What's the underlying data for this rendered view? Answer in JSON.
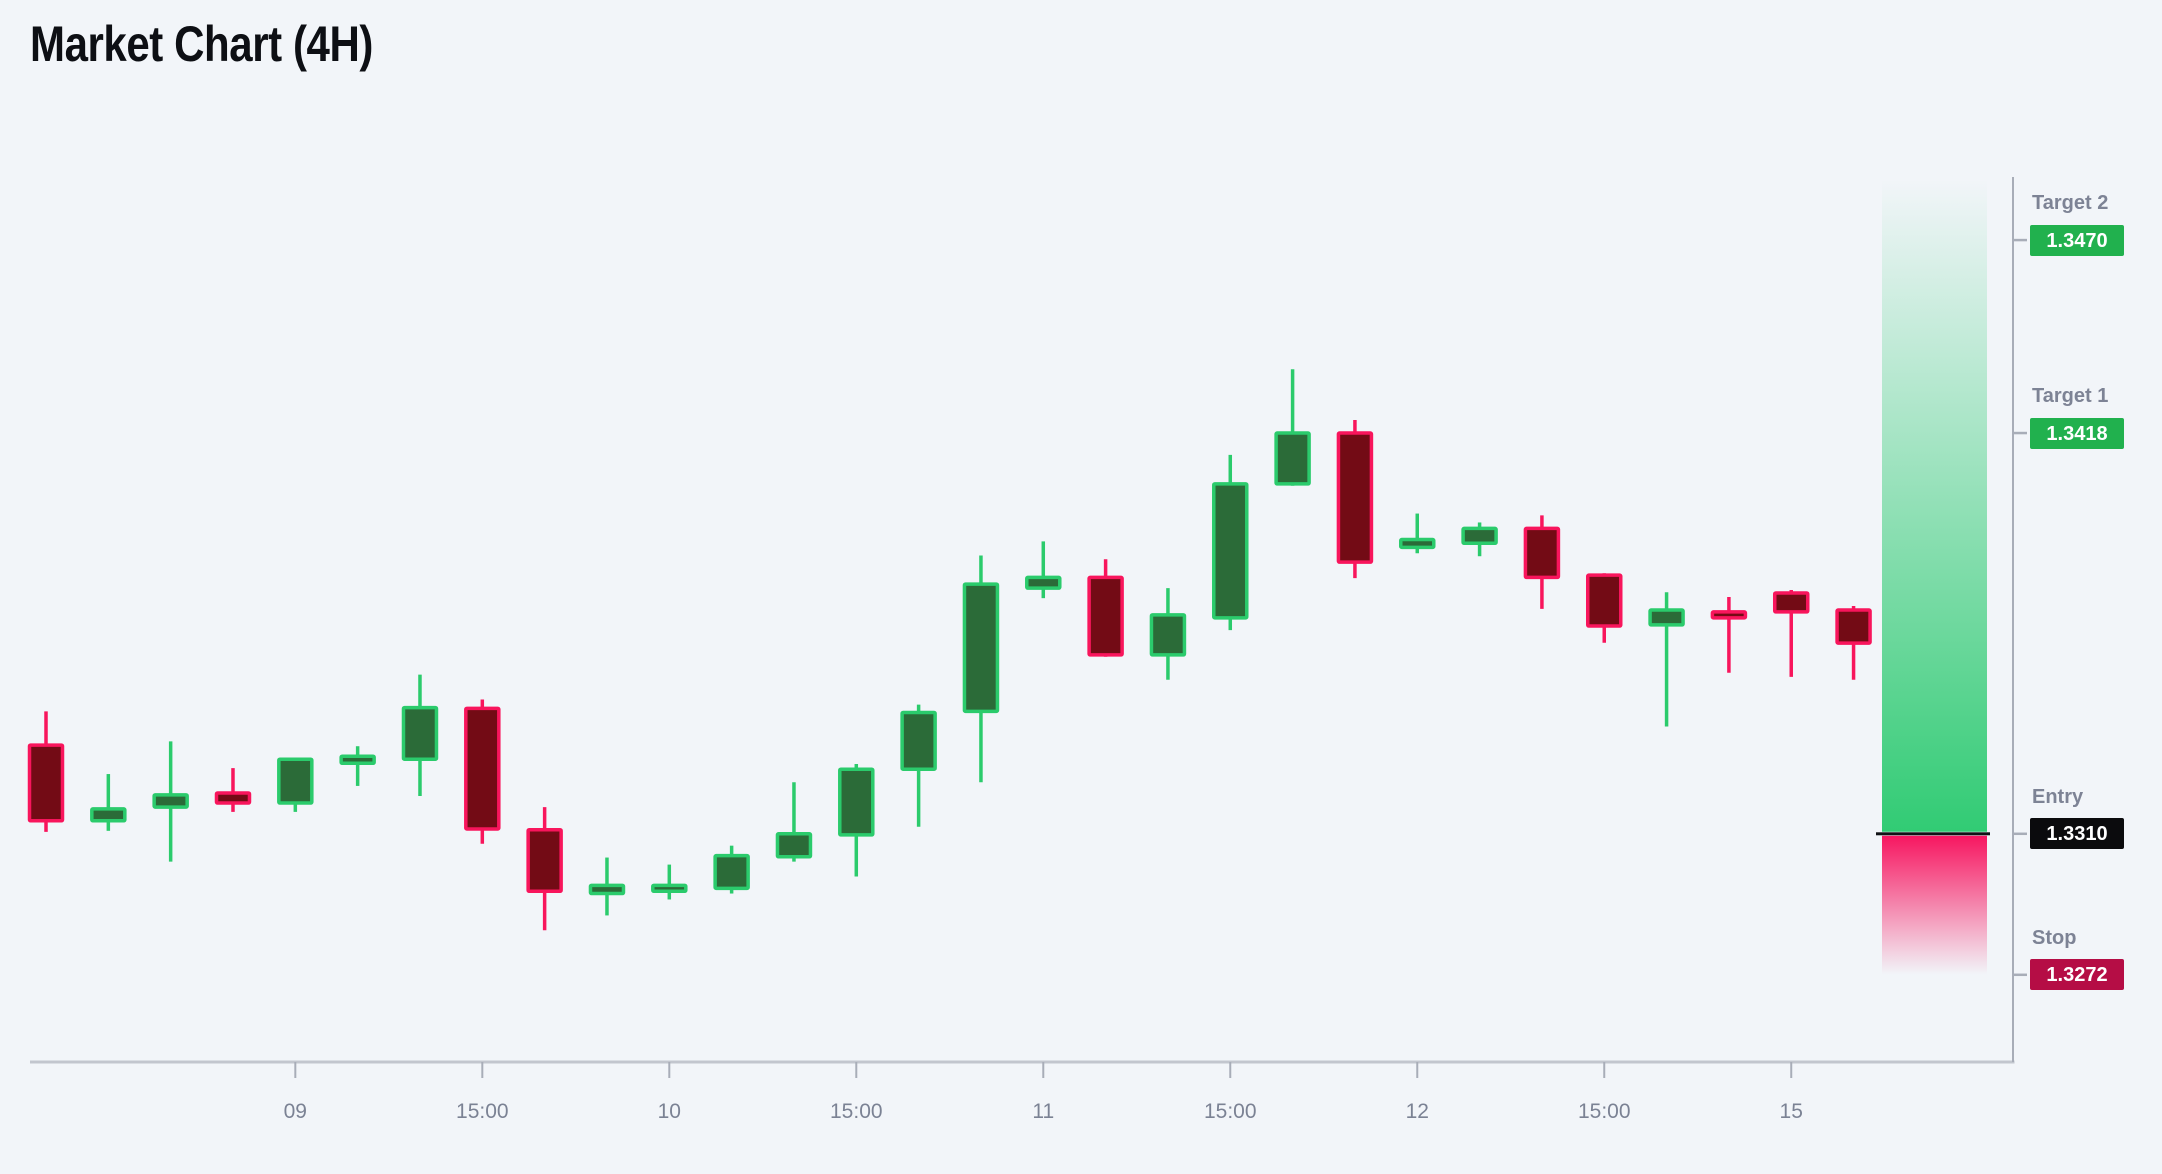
{
  "page": {
    "title": "Market Chart (4H)"
  },
  "colors": {
    "background": "#f2f5f9",
    "title": "#0d0f14",
    "axis_line_bottom": "#c2c6ce",
    "axis_line_right": "#a8adb8",
    "tick_label": "#7b8294",
    "level_label": "#7d8395",
    "candle_up_fill": "#2b6b38",
    "candle_up_stroke": "#2bcb6c",
    "candle_down_fill": "#730b15",
    "candle_down_stroke": "#f8155c",
    "zone_profit": "#27c96d",
    "zone_loss": "#f7105c",
    "entry_line": "#101216",
    "badge_target_bg": "#21b14e",
    "badge_entry_bg": "#0b0b0d",
    "badge_stop_bg": "#b50d45",
    "badge_text": "#ffffff"
  },
  "chart_data": {
    "type": "candlestick",
    "title": "Market Chart (4H)",
    "timeframe": "4H",
    "grid": false,
    "legend_position": "none",
    "ylim": [
      1.32485,
      1.3487
    ],
    "x_tick_labels": [
      "09",
      "15:00",
      "10",
      "15:00",
      "11",
      "15:00",
      "12",
      "15:00",
      "15"
    ],
    "x_tick_candle_indices": [
      4,
      7,
      10,
      13,
      16,
      19,
      22,
      25,
      28
    ],
    "candles": [
      {
        "o": 1.33339,
        "h": 1.3343,
        "l": 1.33105,
        "c": 1.33135
      },
      {
        "o": 1.33135,
        "h": 1.33261,
        "l": 1.33108,
        "c": 1.33167
      },
      {
        "o": 1.33172,
        "h": 1.33349,
        "l": 1.33025,
        "c": 1.33205
      },
      {
        "o": 1.3321,
        "h": 1.33277,
        "l": 1.33159,
        "c": 1.33183
      },
      {
        "o": 1.33183,
        "h": 1.33304,
        "l": 1.33159,
        "c": 1.33301
      },
      {
        "o": 1.3329,
        "h": 1.33336,
        "l": 1.33229,
        "c": 1.33309
      },
      {
        "o": 1.33301,
        "h": 1.33529,
        "l": 1.33202,
        "c": 1.3344
      },
      {
        "o": 1.33438,
        "h": 1.33462,
        "l": 1.33073,
        "c": 1.33113
      },
      {
        "o": 1.33111,
        "h": 1.33172,
        "l": 1.3284,
        "c": 1.32945
      },
      {
        "o": 1.32939,
        "h": 1.33036,
        "l": 1.3288,
        "c": 1.32961
      },
      {
        "o": 1.32945,
        "h": 1.33017,
        "l": 1.32923,
        "c": 1.32961
      },
      {
        "o": 1.32953,
        "h": 1.33068,
        "l": 1.32939,
        "c": 1.33041
      },
      {
        "o": 1.33038,
        "h": 1.33239,
        "l": 1.33025,
        "c": 1.331
      },
      {
        "o": 1.33097,
        "h": 1.33288,
        "l": 1.32985,
        "c": 1.33274
      },
      {
        "o": 1.33274,
        "h": 1.33448,
        "l": 1.33119,
        "c": 1.33427
      },
      {
        "o": 1.3343,
        "h": 1.3385,
        "l": 1.33239,
        "c": 1.33773
      },
      {
        "o": 1.33762,
        "h": 1.33888,
        "l": 1.33735,
        "c": 1.33791
      },
      {
        "o": 1.33791,
        "h": 1.3384,
        "l": 1.33577,
        "c": 1.33582
      },
      {
        "o": 1.33582,
        "h": 1.33762,
        "l": 1.33515,
        "c": 1.3369
      },
      {
        "o": 1.33682,
        "h": 1.34121,
        "l": 1.33649,
        "c": 1.34043
      },
      {
        "o": 1.34043,
        "h": 1.34352,
        "l": 1.34038,
        "c": 1.3418
      },
      {
        "o": 1.3418,
        "h": 1.34215,
        "l": 1.33789,
        "c": 1.33832
      },
      {
        "o": 1.33872,
        "h": 1.33963,
        "l": 1.33856,
        "c": 1.33893
      },
      {
        "o": 1.33883,
        "h": 1.33939,
        "l": 1.33848,
        "c": 1.33923
      },
      {
        "o": 1.33923,
        "h": 1.33958,
        "l": 1.33706,
        "c": 1.33791
      },
      {
        "o": 1.33797,
        "h": 1.33802,
        "l": 1.33615,
        "c": 1.3366
      },
      {
        "o": 1.33663,
        "h": 1.33751,
        "l": 1.33389,
        "c": 1.33703
      },
      {
        "o": 1.33698,
        "h": 1.33738,
        "l": 1.33534,
        "c": 1.33682
      },
      {
        "o": 1.33749,
        "h": 1.33757,
        "l": 1.33523,
        "c": 1.33698
      },
      {
        "o": 1.33703,
        "h": 1.33714,
        "l": 1.33515,
        "c": 1.33614
      }
    ],
    "levels": [
      {
        "id": "target-2",
        "label": "Target 2",
        "value": 1.347,
        "display": "1.3470",
        "kind": "target"
      },
      {
        "id": "target-1",
        "label": "Target 1",
        "value": 1.3418,
        "display": "1.3418",
        "kind": "target"
      },
      {
        "id": "entry",
        "label": "Entry",
        "value": 1.331,
        "display": "1.3310",
        "kind": "entry"
      },
      {
        "id": "stop",
        "label": "Stop",
        "value": 1.3272,
        "display": "1.3272",
        "kind": "stop"
      }
    ]
  }
}
